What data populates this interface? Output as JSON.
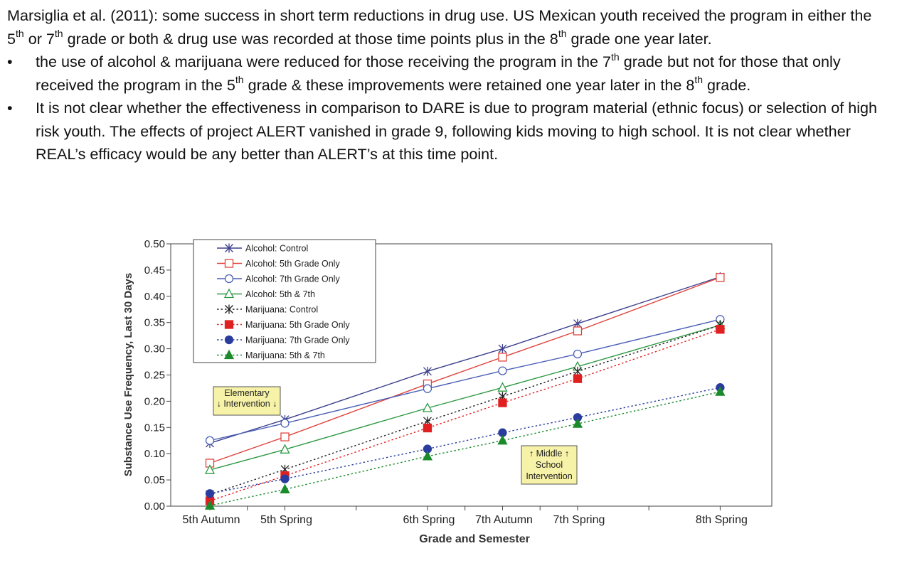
{
  "slide": {
    "intro": {
      "p1": "Marsiglia et al. (2011): some success in short term reductions in drug use.  US Mexican youth received the program in either the 5",
      "sup1": "th",
      "p2": " or 7",
      "sup2": "th",
      "p3": " grade or both & drug use was recorded at those time points plus in the 8",
      "sup3": "th",
      "p4": " grade one year later."
    },
    "bullet_glyph": "•",
    "bullet1": {
      "p1": "the use of alcohol & marijuana were reduced for those receiving the program in the 7",
      "sup1": "th",
      "p2": " grade but not for those that only received the program in the 5",
      "sup2": "th",
      "p3": " grade & these improvements were retained one year later in the 8",
      "sup3": "th",
      "p4": " grade."
    },
    "bullet2": "It is not clear whether the effectiveness in comparison to DARE is due to program material (ethnic focus) or selection of high risk youth. The effects of project ALERT vanished in grade 9, following kids moving to high school. It is not clear whether REAL’s efficacy would be any better than  ALERT’s at this time point."
  },
  "chart_data": {
    "type": "line",
    "xlabel": "Grade and Semester",
    "ylabel": "Substance Use Frequency, Last 30 Days",
    "categories": [
      "5th Autumn",
      "5th Spring",
      "6th Spring",
      "7th Autumn",
      "7th Spring",
      "8th Spring"
    ],
    "x": [
      0,
      1,
      2.9,
      3.9,
      4.9,
      6.8
    ],
    "ylim": [
      0,
      0.5
    ],
    "yticks": [
      "0.00",
      "0.05",
      "0.10",
      "0.15",
      "0.20",
      "0.25",
      "0.30",
      "0.35",
      "0.40",
      "0.45",
      "0.50"
    ],
    "legend_position": "top-left",
    "series": [
      {
        "name": "Alcohol: Control",
        "color": "#3b3f8c",
        "marker": "asterisk",
        "dash": "solid",
        "values": [
          0.12,
          0.165,
          0.257,
          0.3,
          0.348,
          0.437
        ]
      },
      {
        "name": "Alcohol: 5th Grade Only",
        "color": "#e0443c",
        "marker": "square-open",
        "dash": "solid",
        "values": [
          0.082,
          0.132,
          0.233,
          0.284,
          0.334,
          0.436
        ]
      },
      {
        "name": "Alcohol: 7th Grade Only",
        "color": "#4a5fb5",
        "marker": "circle-open",
        "dash": "solid",
        "values": [
          0.125,
          0.158,
          0.224,
          0.258,
          0.29,
          0.356
        ]
      },
      {
        "name": "Alcohol: 5th & 7th",
        "color": "#2e9a44",
        "marker": "triangle-open",
        "dash": "solid",
        "values": [
          0.069,
          0.108,
          0.187,
          0.226,
          0.266,
          0.345
        ]
      },
      {
        "name": "Marijuana: Control",
        "color": "#222222",
        "marker": "asterisk",
        "dash": "dotted",
        "values": [
          0.022,
          0.07,
          0.162,
          0.209,
          0.257,
          0.345
        ]
      },
      {
        "name": "Marijuana: 5th Grade Only",
        "color": "#e02020",
        "marker": "square-filled",
        "dash": "dotted",
        "values": [
          0.01,
          0.058,
          0.149,
          0.197,
          0.243,
          0.337
        ]
      },
      {
        "name": "Marijuana: 7th Grade Only",
        "color": "#2a3d9e",
        "marker": "circle-filled",
        "dash": "dotted",
        "values": [
          0.024,
          0.052,
          0.109,
          0.14,
          0.169,
          0.226
        ]
      },
      {
        "name": "Marijuana: 5th & 7th",
        "color": "#1a8a2a",
        "marker": "triangle-filled",
        "dash": "dotted",
        "values": [
          0.001,
          0.032,
          0.095,
          0.125,
          0.157,
          0.218
        ]
      }
    ],
    "annotations": [
      {
        "lines": [
          "Elementary",
          "↓ Intervention ↓"
        ]
      },
      {
        "lines": [
          "↑  Middle  ↑",
          "School",
          "Intervention"
        ]
      }
    ],
    "annotation_box_color": "#f6f2a8"
  }
}
